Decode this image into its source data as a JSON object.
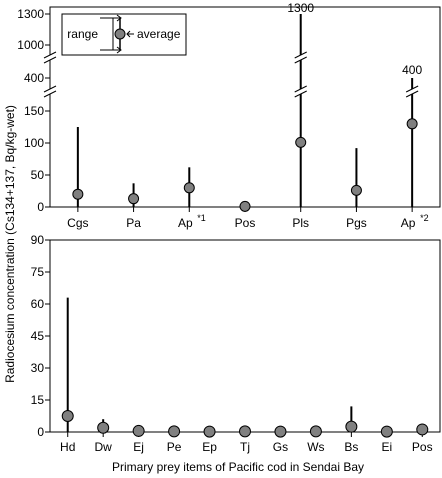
{
  "chart_data": [
    {
      "type": "range-point",
      "categories": [
        "Cgs",
        "Pa",
        "Ap",
        "Pos",
        "Pls",
        "Pgs",
        "Ap"
      ],
      "category_notes": [
        "",
        "",
        "*1",
        "",
        "",
        "",
        "*2"
      ],
      "series": [
        {
          "name": "average",
          "values": [
            20,
            13,
            30,
            1,
            101,
            26,
            130
          ]
        },
        {
          "name": "range",
          "min": [
            0,
            0,
            0,
            0,
            0,
            0,
            0
          ],
          "max": [
            125,
            37,
            62,
            1,
            1300,
            92,
            400
          ]
        }
      ],
      "ylim": [
        0,
        1300
      ],
      "axis_break": {
        "lower": [
          0,
          150
        ],
        "middle": [
          400,
          400
        ],
        "upper": [
          1000,
          1300
        ]
      },
      "yticks": [
        "0",
        "50",
        "100",
        "150",
        "400",
        "1000",
        "1300"
      ],
      "annotations": [
        "1300",
        "400"
      ],
      "legend": {
        "range_label": "range",
        "average_label": "average",
        "position": "top-left"
      }
    },
    {
      "type": "range-point",
      "categories": [
        "Hd",
        "Dw",
        "Ej",
        "Pe",
        "Ep",
        "Tj",
        "Gs",
        "Ws",
        "Bs",
        "Ei",
        "Pos"
      ],
      "series": [
        {
          "name": "average",
          "values": [
            7.5,
            2,
            0.5,
            0.3,
            0.2,
            0.3,
            0.2,
            0.3,
            2.5,
            0.2,
            1.2
          ]
        },
        {
          "name": "range",
          "min": [
            0,
            0,
            0,
            0,
            0,
            0,
            0,
            0,
            0,
            0,
            0
          ],
          "max": [
            63,
            6,
            0.5,
            0.3,
            0.2,
            0.3,
            0.2,
            0.3,
            12,
            0.2,
            1.2
          ]
        }
      ],
      "ylim": [
        0,
        90
      ],
      "yticks": [
        "0",
        "15",
        "30",
        "45",
        "60",
        "75",
        "90"
      ]
    }
  ],
  "ylabel": "Radiocesium concentration (Cs134+137, Bq/kg-wet)",
  "xlabel": "Primary prey items of Pacific cod in Sendai Bay"
}
